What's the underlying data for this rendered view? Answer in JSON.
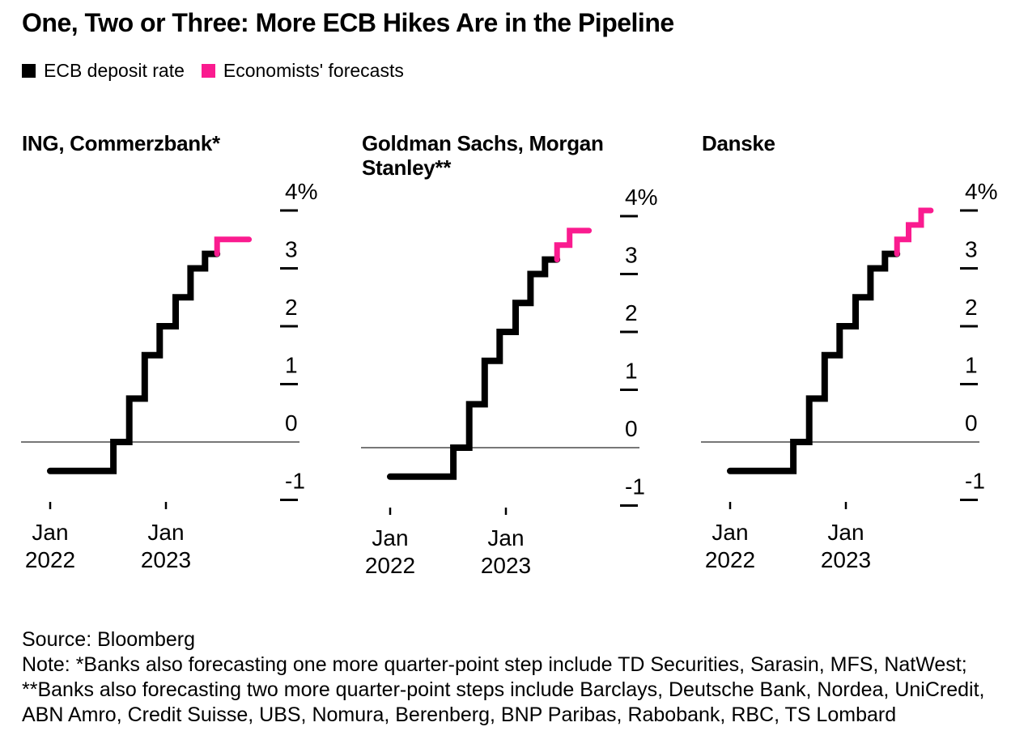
{
  "title": "One, Two or Three: More ECB Hikes Are in the Pipeline",
  "legend": [
    {
      "label": "ECB deposit rate",
      "color": "#000000"
    },
    {
      "label": "Economists' forecasts",
      "color": "#fa1b8f"
    }
  ],
  "colors": {
    "actual": "#000000",
    "forecast": "#fa1b8f",
    "baseline": "#4a4a4a",
    "tick": "#000000"
  },
  "axes": {
    "y_ticks": [
      {
        "value": 4,
        "label": "4%"
      },
      {
        "value": 3,
        "label": "3"
      },
      {
        "value": 2,
        "label": "2"
      },
      {
        "value": 1,
        "label": "1"
      },
      {
        "value": 0,
        "label": "0"
      },
      {
        "value": -1,
        "label": "-1"
      }
    ],
    "x_ticks": [
      {
        "month": 0,
        "line1": "Jan",
        "line2": "2022"
      },
      {
        "month": 12,
        "line1": "Jan",
        "line2": "2023"
      }
    ],
    "ylim": [
      -1,
      4
    ],
    "baseline_value": 0,
    "grid": false,
    "legend_position": "top"
  },
  "chart_data": [
    {
      "panel": "ING, Commerzbank*",
      "type": "line",
      "step": true,
      "x_unit": "months since Jan 2022",
      "xlim": [
        0,
        20.6
      ],
      "ylim": [
        -1,
        4
      ],
      "series": [
        {
          "name": "ECB deposit rate",
          "color": "#000000",
          "points": [
            [
              0,
              -0.5
            ],
            [
              6.55,
              -0.5
            ],
            [
              6.55,
              0
            ],
            [
              8.2,
              0
            ],
            [
              8.2,
              0.75
            ],
            [
              9.8,
              0.75
            ],
            [
              9.8,
              1.5
            ],
            [
              11.35,
              1.5
            ],
            [
              11.35,
              2
            ],
            [
              13,
              2
            ],
            [
              13,
              2.5
            ],
            [
              14.55,
              2.5
            ],
            [
              14.55,
              3
            ],
            [
              16.05,
              3
            ],
            [
              16.05,
              3.25
            ],
            [
              17.3,
              3.25
            ]
          ]
        },
        {
          "name": "Economists' forecasts",
          "color": "#fa1b8f",
          "points": [
            [
              17.3,
              3.25
            ],
            [
              17.3,
              3.5
            ],
            [
              20.6,
              3.5
            ]
          ]
        }
      ]
    },
    {
      "panel": "Goldman Sachs, Morgan Stanley**",
      "type": "line",
      "step": true,
      "x_unit": "months since Jan 2022",
      "xlim": [
        0,
        20.6
      ],
      "ylim": [
        -1,
        4
      ],
      "series": [
        {
          "name": "ECB deposit rate",
          "color": "#000000",
          "points": [
            [
              0,
              -0.5
            ],
            [
              6.55,
              -0.5
            ],
            [
              6.55,
              0
            ],
            [
              8.2,
              0
            ],
            [
              8.2,
              0.75
            ],
            [
              9.8,
              0.75
            ],
            [
              9.8,
              1.5
            ],
            [
              11.35,
              1.5
            ],
            [
              11.35,
              2
            ],
            [
              13,
              2
            ],
            [
              13,
              2.5
            ],
            [
              14.55,
              2.5
            ],
            [
              14.55,
              3
            ],
            [
              16.05,
              3
            ],
            [
              16.05,
              3.25
            ],
            [
              17.3,
              3.25
            ]
          ]
        },
        {
          "name": "Economists' forecasts",
          "color": "#fa1b8f",
          "points": [
            [
              17.3,
              3.25
            ],
            [
              17.3,
              3.5
            ],
            [
              18.6,
              3.5
            ],
            [
              18.6,
              3.75
            ],
            [
              20.6,
              3.75
            ]
          ]
        }
      ]
    },
    {
      "panel": "Danske",
      "type": "line",
      "step": true,
      "x_unit": "months since Jan 2022",
      "xlim": [
        0,
        20.8
      ],
      "ylim": [
        -1,
        4
      ],
      "series": [
        {
          "name": "ECB deposit rate",
          "color": "#000000",
          "points": [
            [
              0,
              -0.5
            ],
            [
              6.55,
              -0.5
            ],
            [
              6.55,
              0
            ],
            [
              8.2,
              0
            ],
            [
              8.2,
              0.75
            ],
            [
              9.8,
              0.75
            ],
            [
              9.8,
              1.5
            ],
            [
              11.35,
              1.5
            ],
            [
              11.35,
              2
            ],
            [
              13,
              2
            ],
            [
              13,
              2.5
            ],
            [
              14.55,
              2.5
            ],
            [
              14.55,
              3
            ],
            [
              16.05,
              3
            ],
            [
              16.05,
              3.25
            ],
            [
              17.3,
              3.25
            ]
          ]
        },
        {
          "name": "Economists' forecasts",
          "color": "#fa1b8f",
          "points": [
            [
              17.3,
              3.25
            ],
            [
              17.3,
              3.5
            ],
            [
              18.5,
              3.5
            ],
            [
              18.5,
              3.75
            ],
            [
              19.8,
              3.75
            ],
            [
              19.8,
              4
            ],
            [
              20.8,
              4
            ]
          ]
        }
      ]
    }
  ],
  "source_line": "Source: Bloomberg",
  "note_line": "Note: *Banks also forecasting one more quarter-point step include TD Securities, Sarasin, MFS, NatWest; **Banks also forecasting two more quarter-point steps include Barclays, Deutsche Bank, Nordea, UniCredit, ABN Amro, Credit Suisse, UBS, Nomura, Berenberg, BNP Paribas, Rabobank, RBC, TS Lombard"
}
